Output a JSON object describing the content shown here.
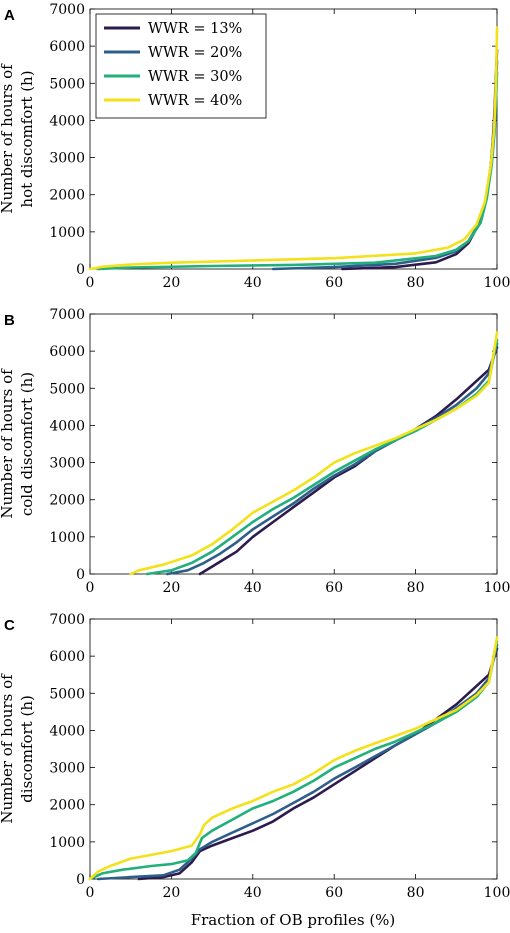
{
  "legend": {
    "entries": [
      {
        "label": "WWR = 13%",
        "color": "#2d1b4e"
      },
      {
        "label": "WWR = 20%",
        "color": "#2e5f8a"
      },
      {
        "label": "WWR = 30%",
        "color": "#21b07c"
      },
      {
        "label": "WWR = 40%",
        "color": "#f3e11a"
      }
    ]
  },
  "chart_data": [
    {
      "type": "line",
      "panel": "A",
      "ylabel": [
        "Number of hours of",
        "hot discomfort (h)"
      ],
      "xlabel": "",
      "xlim": [
        0,
        100
      ],
      "ylim": [
        0,
        7000
      ],
      "xticks": [
        0,
        20,
        40,
        60,
        80,
        100
      ],
      "yticks": [
        0,
        1000,
        2000,
        3000,
        4000,
        5000,
        6000,
        7000
      ],
      "grid": false,
      "legend_position": "top-left",
      "series": [
        {
          "name": "WWR = 13%",
          "color": "#2d1b4e",
          "x": [
            62,
            75,
            85,
            90,
            93,
            96,
            97.5,
            98.5,
            99.2,
            99.6,
            100
          ],
          "y": [
            0,
            50,
            180,
            400,
            700,
            1300,
            2000,
            2800,
            3800,
            4800,
            5900
          ]
        },
        {
          "name": "WWR = 20%",
          "color": "#2e5f8a",
          "x": [
            45,
            60,
            75,
            85,
            90,
            93,
            96,
            97.5,
            98.5,
            99.3,
            99.7,
            100
          ],
          "y": [
            0,
            50,
            140,
            300,
            480,
            750,
            1300,
            2000,
            2800,
            3800,
            4800,
            5600
          ]
        },
        {
          "name": "WWR = 30%",
          "color": "#21b07c",
          "x": [
            2,
            10,
            30,
            50,
            70,
            85,
            90,
            93,
            96,
            97.5,
            98.7,
            99.4,
            99.8,
            100
          ],
          "y": [
            0,
            40,
            80,
            110,
            170,
            350,
            520,
            750,
            1250,
            1900,
            2800,
            3700,
            4700,
            5300
          ]
        },
        {
          "name": "WWR = 40%",
          "color": "#f3e11a",
          "x": [
            0,
            3,
            10,
            20,
            40,
            60,
            80,
            88,
            92,
            95,
            97,
            98.5,
            99.3,
            99.8,
            100
          ],
          "y": [
            0,
            60,
            120,
            170,
            230,
            290,
            420,
            580,
            800,
            1200,
            1800,
            2800,
            3800,
            5200,
            6500
          ]
        }
      ]
    },
    {
      "type": "line",
      "panel": "B",
      "ylabel": [
        "Number of hours of",
        "cold discomfort (h)"
      ],
      "xlabel": "",
      "xlim": [
        0,
        100
      ],
      "ylim": [
        0,
        7000
      ],
      "xticks": [
        0,
        20,
        40,
        60,
        80,
        100
      ],
      "yticks": [
        0,
        1000,
        2000,
        3000,
        4000,
        5000,
        6000,
        7000
      ],
      "grid": false,
      "series": [
        {
          "name": "WWR = 13%",
          "color": "#2d1b4e",
          "x": [
            27,
            30,
            33,
            36,
            40,
            45,
            50,
            55,
            60,
            65,
            70,
            75,
            80,
            85,
            90,
            95,
            98,
            100
          ],
          "y": [
            0,
            200,
            400,
            600,
            1000,
            1400,
            1800,
            2200,
            2600,
            2900,
            3300,
            3600,
            3900,
            4250,
            4700,
            5200,
            5500,
            6100
          ]
        },
        {
          "name": "WWR = 20%",
          "color": "#2e5f8a",
          "x": [
            19,
            24,
            28,
            32,
            36,
            40,
            45,
            50,
            55,
            60,
            65,
            70,
            75,
            80,
            85,
            90,
            95,
            98,
            100
          ],
          "y": [
            0,
            100,
            300,
            550,
            850,
            1200,
            1550,
            1900,
            2300,
            2650,
            2950,
            3300,
            3600,
            3900,
            4200,
            4550,
            5000,
            5400,
            6200
          ]
        },
        {
          "name": "WWR = 30%",
          "color": "#21b07c",
          "x": [
            14,
            20,
            25,
            30,
            35,
            40,
            45,
            50,
            55,
            60,
            65,
            70,
            75,
            80,
            85,
            90,
            95,
            98,
            100
          ],
          "y": [
            0,
            100,
            300,
            600,
            1000,
            1400,
            1750,
            2050,
            2400,
            2750,
            3050,
            3350,
            3600,
            3850,
            4150,
            4450,
            4850,
            5200,
            6300
          ]
        },
        {
          "name": "WWR = 40%",
          "color": "#f3e11a",
          "x": [
            10,
            12,
            18,
            25,
            30,
            35,
            40,
            45,
            50,
            55,
            60,
            65,
            70,
            75,
            80,
            85,
            90,
            95,
            98,
            100
          ],
          "y": [
            0,
            100,
            250,
            500,
            800,
            1200,
            1650,
            1950,
            2250,
            2600,
            3000,
            3250,
            3450,
            3650,
            3900,
            4150,
            4450,
            4800,
            5150,
            6500
          ]
        }
      ]
    },
    {
      "type": "line",
      "panel": "C",
      "ylabel": [
        "Number of hours of",
        "discomfort (h)"
      ],
      "xlabel": "Fraction of OB profiles (%)",
      "xlim": [
        0,
        100
      ],
      "ylim": [
        0,
        7000
      ],
      "xticks": [
        0,
        20,
        40,
        60,
        80,
        100
      ],
      "yticks": [
        0,
        1000,
        2000,
        3000,
        4000,
        5000,
        6000,
        7000
      ],
      "grid": false,
      "series": [
        {
          "name": "WWR = 13%",
          "color": "#2d1b4e",
          "x": [
            12,
            18,
            22,
            25,
            27,
            30,
            35,
            40,
            45,
            50,
            55,
            60,
            65,
            70,
            75,
            80,
            85,
            90,
            95,
            98,
            100
          ],
          "y": [
            0,
            50,
            150,
            450,
            750,
            900,
            1100,
            1300,
            1550,
            1900,
            2200,
            2550,
            2900,
            3250,
            3600,
            3900,
            4300,
            4700,
            5200,
            5500,
            6200
          ]
        },
        {
          "name": "WWR = 20%",
          "color": "#2e5f8a",
          "x": [
            2,
            10,
            18,
            22,
            25,
            27,
            30,
            35,
            40,
            45,
            50,
            55,
            60,
            65,
            70,
            75,
            80,
            85,
            90,
            95,
            98,
            100
          ],
          "y": [
            0,
            50,
            100,
            250,
            550,
            800,
            1000,
            1250,
            1500,
            1750,
            2050,
            2350,
            2700,
            3000,
            3300,
            3600,
            3900,
            4200,
            4600,
            5000,
            5400,
            6300
          ]
        },
        {
          "name": "WWR = 30%",
          "color": "#21b07c",
          "x": [
            0,
            3,
            8,
            15,
            20,
            24,
            26,
            27.5,
            30,
            35,
            40,
            45,
            50,
            55,
            60,
            65,
            70,
            75,
            80,
            85,
            90,
            95,
            98,
            100
          ],
          "y": [
            0,
            150,
            250,
            350,
            400,
            500,
            700,
            1100,
            1300,
            1600,
            1900,
            2100,
            2350,
            2650,
            3000,
            3250,
            3500,
            3700,
            3950,
            4200,
            4500,
            4900,
            5300,
            6400
          ]
        },
        {
          "name": "WWR = 40%",
          "color": "#f3e11a",
          "x": [
            0,
            2,
            5,
            10,
            15,
            20,
            25,
            27,
            28,
            30,
            35,
            40,
            45,
            50,
            55,
            60,
            65,
            70,
            75,
            80,
            85,
            90,
            95,
            98,
            100
          ],
          "y": [
            0,
            200,
            350,
            550,
            650,
            750,
            900,
            1200,
            1450,
            1650,
            1900,
            2100,
            2350,
            2550,
            2850,
            3200,
            3450,
            3650,
            3850,
            4050,
            4300,
            4550,
            4950,
            5300,
            6500
          ]
        }
      ]
    }
  ]
}
